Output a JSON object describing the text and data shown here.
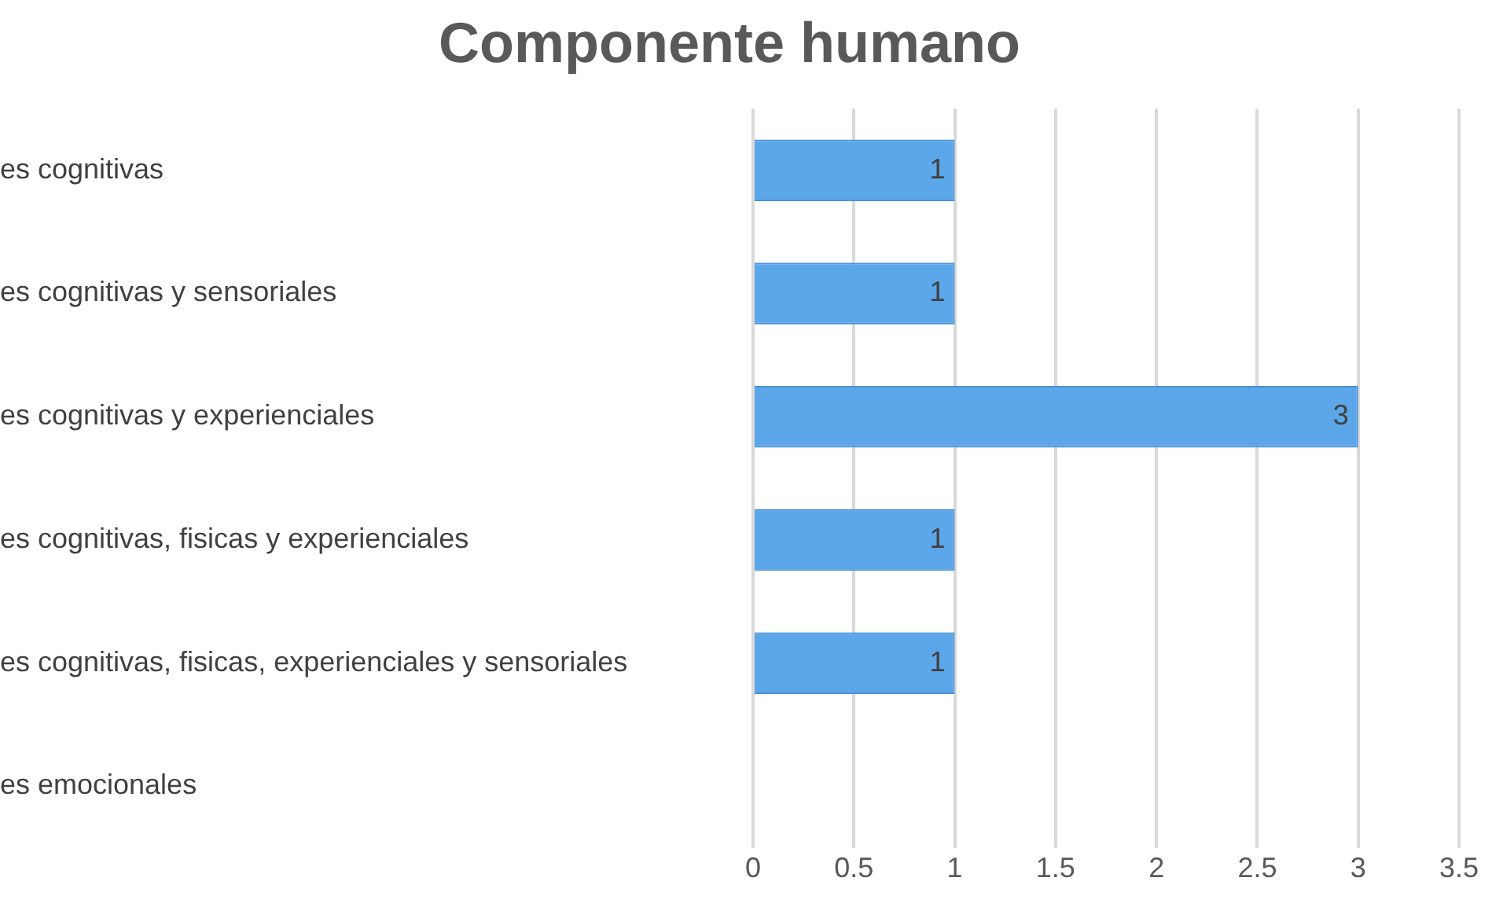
{
  "chart_data": {
    "type": "bar",
    "orientation": "horizontal",
    "title": "Componente humano",
    "categories": [
      "es cognitivas",
      "es cognitivas y sensoriales",
      "es cognitivas y experienciales",
      "es cognitivas, fisicas y experienciales",
      "es cognitivas, fisicas, experienciales y sensoriales",
      "es emocionales"
    ],
    "values": [
      1,
      1,
      3,
      1,
      1,
      null
    ],
    "color": "#5ba7ea",
    "xlim": [
      0,
      3.5
    ],
    "xticks": [
      0,
      0.5,
      1,
      1.5,
      2,
      2.5,
      3,
      3.5
    ],
    "grid": "x",
    "data_labels": true,
    "legend": false
  }
}
